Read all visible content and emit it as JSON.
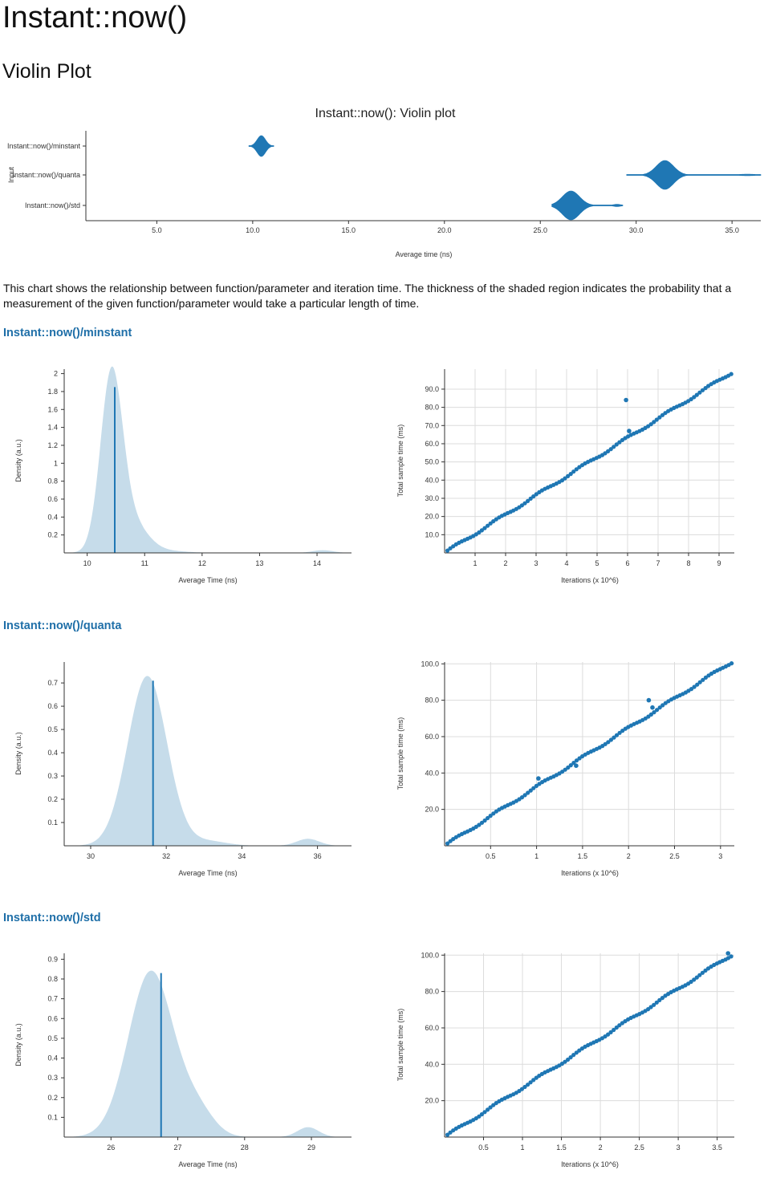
{
  "page": {
    "title": "Instant::now()",
    "subtitle": "Violin Plot",
    "description": "This chart shows the relationship between function/parameter and iteration time. The thickness of the shaded region indicates the probability that a measurement of the given function/parameter would take a particular length of time."
  },
  "colors": {
    "accent": "#1f77b4",
    "fill": "#c6dcea",
    "grid": "#dcdcdc",
    "heading": "#1f6fa8"
  },
  "chart_data": [
    {
      "id": "violin",
      "type": "violin",
      "title": "Instant::now(): Violin plot",
      "xlabel": "Average time (ns)",
      "ylabel": "Input",
      "xlim": [
        1.3,
        36.5
      ],
      "xticks": [
        "5.0",
        "10.0",
        "15.0",
        "20.0",
        "25.0",
        "30.0",
        "35.0"
      ],
      "categories": [
        "Instant::now()/minstant",
        "Instant::now()/quanta",
        "Instant::now()/std"
      ],
      "series": [
        {
          "name": "Instant::now()/minstant",
          "peaks": [
            {
              "center": 10.45,
              "sd": 0.22,
              "amp": 1.0
            }
          ],
          "range": [
            9.8,
            11.1
          ]
        },
        {
          "name": "Instant::now()/quanta",
          "peaks": [
            {
              "center": 31.5,
              "sd": 0.45,
              "amp": 1.0
            },
            {
              "center": 35.8,
              "sd": 0.5,
              "amp": 0.05
            }
          ],
          "range": [
            29.5,
            36.5
          ]
        },
        {
          "name": "Instant::now()/std",
          "peaks": [
            {
              "center": 26.6,
              "sd": 0.45,
              "amp": 1.0
            },
            {
              "center": 29.0,
              "sd": 0.2,
              "amp": 0.08
            }
          ],
          "range": [
            25.6,
            29.3
          ]
        }
      ]
    },
    {
      "id": "pdf-minstant",
      "type": "area",
      "xlabel": "Average Time (ns)",
      "ylabel": "Density (a.u.)",
      "xlim": [
        9.6,
        14.6
      ],
      "ylim": [
        0,
        2.05
      ],
      "xticks": [
        10,
        11,
        12,
        13,
        14
      ],
      "yticks": [
        0.2,
        0.4,
        0.6,
        0.8,
        1,
        1.2,
        1.4,
        1.6,
        1.8,
        2
      ],
      "peaks": [
        {
          "center": 10.42,
          "sd": 0.19,
          "amp": 1.9
        },
        {
          "center": 10.75,
          "sd": 0.28,
          "amp": 0.35
        },
        {
          "center": 11.4,
          "sd": 0.35,
          "amp": 0.02
        },
        {
          "center": 14.1,
          "sd": 0.18,
          "amp": 0.03
        }
      ],
      "mean": 10.48,
      "mean_density": 1.85
    },
    {
      "id": "reg-minstant",
      "type": "scatter",
      "xlabel": "Iterations (x 10^6)",
      "ylabel": "Total sample time (ms)",
      "xlim": [
        0,
        9.5
      ],
      "ylim": [
        0,
        101
      ],
      "xticks": [
        1,
        2,
        3,
        4,
        5,
        6,
        7,
        8,
        9
      ],
      "yticks": [
        10,
        20,
        30,
        40,
        50,
        60,
        70,
        80,
        90
      ],
      "n_points": 100,
      "x_max": 9.4,
      "y_max": 99,
      "outliers": [
        {
          "x": 5.95,
          "y": 84
        },
        {
          "x": 6.05,
          "y": 67
        }
      ]
    },
    {
      "id": "pdf-quanta",
      "type": "area",
      "xlabel": "Average Time (ns)",
      "ylabel": "Density (a.u.)",
      "xlim": [
        29.3,
        36.9
      ],
      "ylim": [
        0,
        0.79
      ],
      "xticks": [
        30,
        32,
        34,
        36
      ],
      "yticks": [
        0.1,
        0.2,
        0.3,
        0.4,
        0.5,
        0.6,
        0.7
      ],
      "peaks": [
        {
          "center": 31.5,
          "sd": 0.52,
          "amp": 0.73
        },
        {
          "center": 33.1,
          "sd": 0.5,
          "amp": 0.02
        },
        {
          "center": 35.75,
          "sd": 0.3,
          "amp": 0.03
        }
      ],
      "mean": 31.65,
      "mean_density": 0.71
    },
    {
      "id": "reg-quanta",
      "type": "scatter",
      "xlabel": "Iterations (x 10^6)",
      "ylabel": "Total sample time (ms)",
      "xlim": [
        0,
        3.15
      ],
      "ylim": [
        0,
        101
      ],
      "xticks": [
        0.5,
        1,
        1.5,
        2,
        2.5,
        3
      ],
      "yticks": [
        20,
        40,
        60,
        80,
        100
      ],
      "n_points": 100,
      "x_max": 3.12,
      "y_max": 101,
      "outliers": [
        {
          "x": 2.22,
          "y": 80
        },
        {
          "x": 2.26,
          "y": 76
        },
        {
          "x": 1.02,
          "y": 37
        },
        {
          "x": 1.43,
          "y": 44
        }
      ]
    },
    {
      "id": "pdf-std",
      "type": "area",
      "xlabel": "Average Time (ns)",
      "ylabel": "Density (a.u.)",
      "xlim": [
        25.3,
        29.6
      ],
      "ylim": [
        0,
        0.93
      ],
      "xticks": [
        26,
        27,
        28,
        29
      ],
      "yticks": [
        0.1,
        0.2,
        0.3,
        0.4,
        0.5,
        0.6,
        0.7,
        0.8,
        0.9
      ],
      "peaks": [
        {
          "center": 26.6,
          "sd": 0.34,
          "amp": 0.84
        },
        {
          "center": 27.3,
          "sd": 0.25,
          "amp": 0.12
        },
        {
          "center": 28.95,
          "sd": 0.16,
          "amp": 0.05
        }
      ],
      "mean": 26.75,
      "mean_density": 0.83
    },
    {
      "id": "reg-std",
      "type": "scatter",
      "xlabel": "Iterations (x 10^6)",
      "ylabel": "Total sample time (ms)",
      "xlim": [
        0,
        3.72
      ],
      "ylim": [
        0,
        101
      ],
      "xticks": [
        0.5,
        1,
        1.5,
        2,
        2.5,
        3,
        3.5
      ],
      "yticks": [
        20,
        40,
        60,
        80,
        100
      ],
      "n_points": 100,
      "x_max": 3.68,
      "y_max": 100,
      "outliers": [
        {
          "x": 3.64,
          "y": 101
        }
      ]
    }
  ],
  "sections": [
    {
      "title": "Instant::now()/minstant"
    },
    {
      "title": "Instant::now()/quanta"
    },
    {
      "title": "Instant::now()/std"
    }
  ]
}
